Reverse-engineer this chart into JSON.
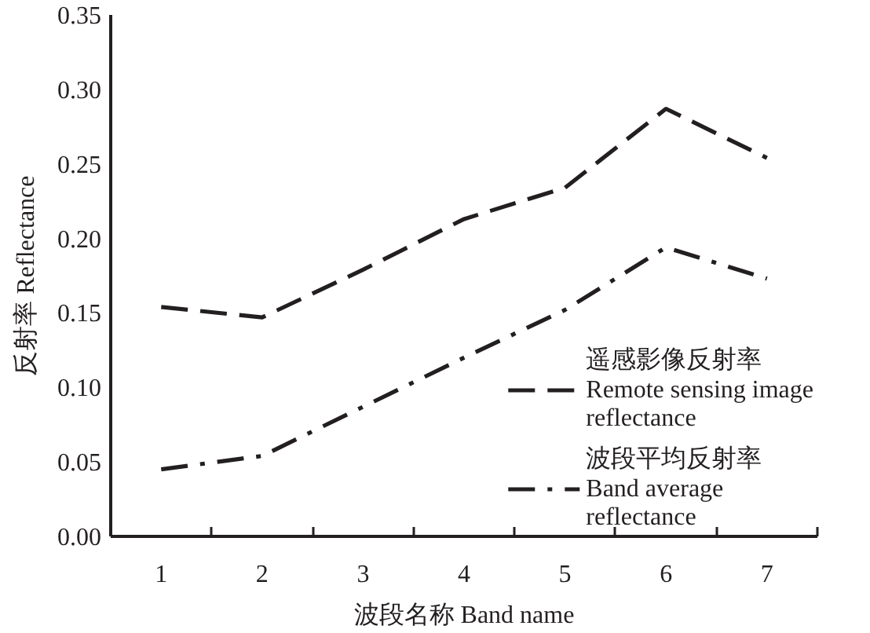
{
  "chart_data": {
    "type": "line",
    "xlabel": "波段名称 Band name",
    "ylabel": "反射率 Reflectance",
    "categories": [
      "1",
      "2",
      "3",
      "4",
      "5",
      "6",
      "7"
    ],
    "ylim": [
      0,
      0.35
    ],
    "yticks": [
      {
        "value": 0,
        "label": "0.00"
      },
      0.05,
      {
        "value": 0.1,
        "label": "0.10"
      },
      0.15,
      {
        "value": 0.2,
        "label": "0.20"
      },
      0.25,
      {
        "value": 0.3,
        "label": "0.30"
      },
      0.35
    ],
    "legend": "bottom right",
    "series": [
      {
        "name": "遥感影像反射率\nRemote sensing image\nreflectance",
        "color": "#231f20",
        "line_style": "dashed",
        "values": [
          0.154,
          0.147,
          0.179,
          0.213,
          0.234,
          0.287,
          0.254
        ]
      },
      {
        "name": "波段平均反射率\nBand average\nreflectance",
        "color": "#231f20",
        "line_style": "dashdot",
        "values": [
          0.045,
          0.054,
          0.087,
          0.12,
          0.152,
          0.194,
          0.173
        ]
      }
    ]
  }
}
